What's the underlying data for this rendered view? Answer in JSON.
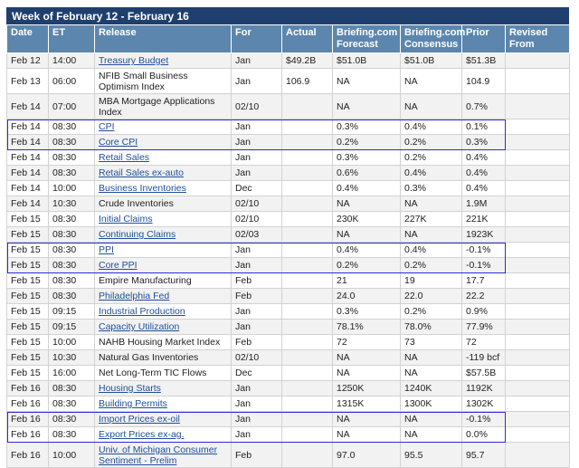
{
  "title": "Week of February 12 - February 16",
  "columns": [
    "Date",
    "ET",
    "Release",
    "For",
    "Actual",
    "Briefing.com Forecast",
    "Briefing.com Consensus",
    "Prior",
    "Revised From"
  ],
  "rows": [
    {
      "date": "Feb 12",
      "et": "14:00",
      "release": "Treasury Budget",
      "link": true,
      "for": "Jan",
      "actual": "$49.2B",
      "forecast": "$51.0B",
      "consensus": "$51.0B",
      "prior": "$51.3B",
      "revised": ""
    },
    {
      "date": "Feb 13",
      "et": "06:00",
      "release": "NFIB Small Business Optimism Index",
      "link": false,
      "for": "Jan",
      "actual": "106.9",
      "forecast": "NA",
      "consensus": "NA",
      "prior": "104.9",
      "revised": ""
    },
    {
      "date": "Feb 14",
      "et": "07:00",
      "release": "MBA Mortgage Applications Index",
      "link": false,
      "for": "02/10",
      "actual": "",
      "forecast": "NA",
      "consensus": "NA",
      "prior": "0.7%",
      "revised": ""
    },
    {
      "date": "Feb 14",
      "et": "08:30",
      "release": "CPI",
      "link": true,
      "for": "Jan",
      "actual": "",
      "forecast": "0.3%",
      "consensus": "0.4%",
      "prior": "0.1%",
      "revised": ""
    },
    {
      "date": "Feb 14",
      "et": "08:30",
      "release": "Core CPI",
      "link": true,
      "for": "Jan",
      "actual": "",
      "forecast": "0.2%",
      "consensus": "0.2%",
      "prior": "0.3%",
      "revised": ""
    },
    {
      "date": "Feb 14",
      "et": "08:30",
      "release": "Retail Sales",
      "link": true,
      "for": "Jan",
      "actual": "",
      "forecast": "0.3%",
      "consensus": "0.2%",
      "prior": "0.4%",
      "revised": ""
    },
    {
      "date": "Feb 14",
      "et": "08:30",
      "release": "Retail Sales ex-auto",
      "link": true,
      "for": "Jan",
      "actual": "",
      "forecast": "0.6%",
      "consensus": "0.4%",
      "prior": "0.4%",
      "revised": ""
    },
    {
      "date": "Feb 14",
      "et": "10:00",
      "release": "Business Inventories",
      "link": true,
      "for": "Dec",
      "actual": "",
      "forecast": "0.4%",
      "consensus": "0.3%",
      "prior": "0.4%",
      "revised": ""
    },
    {
      "date": "Feb 14",
      "et": "10:30",
      "release": "Crude Inventories",
      "link": false,
      "for": "02/10",
      "actual": "",
      "forecast": "NA",
      "consensus": "NA",
      "prior": "1.9M",
      "revised": ""
    },
    {
      "date": "Feb 15",
      "et": "08:30",
      "release": "Initial Claims",
      "link": true,
      "for": "02/10",
      "actual": "",
      "forecast": "230K",
      "consensus": "227K",
      "prior": "221K",
      "revised": ""
    },
    {
      "date": "Feb 15",
      "et": "08:30",
      "release": "Continuing Claims",
      "link": true,
      "for": "02/03",
      "actual": "",
      "forecast": "NA",
      "consensus": "NA",
      "prior": "1923K",
      "revised": ""
    },
    {
      "date": "Feb 15",
      "et": "08:30",
      "release": "PPI",
      "link": true,
      "for": "Jan",
      "actual": "",
      "forecast": "0.4%",
      "consensus": "0.4%",
      "prior": "-0.1%",
      "revised": ""
    },
    {
      "date": "Feb 15",
      "et": "08:30",
      "release": "Core PPI",
      "link": true,
      "for": "Jan",
      "actual": "",
      "forecast": "0.2%",
      "consensus": "0.2%",
      "prior": "-0.1%",
      "revised": ""
    },
    {
      "date": "Feb 15",
      "et": "08:30",
      "release": "Empire Manufacturing",
      "link": false,
      "for": "Feb",
      "actual": "",
      "forecast": "21",
      "consensus": "19",
      "prior": "17.7",
      "revised": ""
    },
    {
      "date": "Feb 15",
      "et": "08:30",
      "release": "Philadelphia Fed",
      "link": true,
      "for": "Feb",
      "actual": "",
      "forecast": "24.0",
      "consensus": "22.0",
      "prior": "22.2",
      "revised": ""
    },
    {
      "date": "Feb 15",
      "et": "09:15",
      "release": "Industrial Production",
      "link": true,
      "for": "Jan",
      "actual": "",
      "forecast": "0.3%",
      "consensus": "0.2%",
      "prior": "0.9%",
      "revised": ""
    },
    {
      "date": "Feb 15",
      "et": "09:15",
      "release": "Capacity Utilization",
      "link": true,
      "for": "Jan",
      "actual": "",
      "forecast": "78.1%",
      "consensus": "78.0%",
      "prior": "77.9%",
      "revised": ""
    },
    {
      "date": "Feb 15",
      "et": "10:00",
      "release": "NAHB Housing Market Index",
      "link": false,
      "for": "Feb",
      "actual": "",
      "forecast": "72",
      "consensus": "73",
      "prior": "72",
      "revised": ""
    },
    {
      "date": "Feb 15",
      "et": "10:30",
      "release": "Natural Gas Inventories",
      "link": false,
      "for": "02/10",
      "actual": "",
      "forecast": "NA",
      "consensus": "NA",
      "prior": "-119 bcf",
      "revised": ""
    },
    {
      "date": "Feb 15",
      "et": "16:00",
      "release": "Net Long-Term TIC Flows",
      "link": false,
      "for": "Dec",
      "actual": "",
      "forecast": "NA",
      "consensus": "NA",
      "prior": "$57.5B",
      "revised": ""
    },
    {
      "date": "Feb 16",
      "et": "08:30",
      "release": "Housing Starts",
      "link": true,
      "for": "Jan",
      "actual": "",
      "forecast": "1250K",
      "consensus": "1240K",
      "prior": "1192K",
      "revised": ""
    },
    {
      "date": "Feb 16",
      "et": "08:30",
      "release": "Building Permits",
      "link": true,
      "for": "Jan",
      "actual": "",
      "forecast": "1315K",
      "consensus": "1300K",
      "prior": "1302K",
      "revised": ""
    },
    {
      "date": "Feb 16",
      "et": "08:30",
      "release": "Import Prices ex-oil",
      "link": true,
      "for": "Jan",
      "actual": "",
      "forecast": "NA",
      "consensus": "NA",
      "prior": "-0.1%",
      "revised": ""
    },
    {
      "date": "Feb 16",
      "et": "08:30",
      "release": "Export Prices ex-ag.",
      "link": true,
      "for": "Jan",
      "actual": "",
      "forecast": "NA",
      "consensus": "NA",
      "prior": "0.0%",
      "revised": ""
    },
    {
      "date": "Feb 16",
      "et": "10:00",
      "release": "Univ. of Michigan Consumer Sentiment - Prelim",
      "link": true,
      "for": "Feb",
      "actual": "",
      "forecast": "97.0",
      "consensus": "95.5",
      "prior": "95.7",
      "revised": ""
    }
  ],
  "highlight_groups": [
    [
      3,
      4
    ],
    [
      11,
      12
    ],
    [
      22,
      23
    ]
  ],
  "colors": {
    "title_bg": "#1f3f6f",
    "header_bg": "#5c86ad",
    "link": "#1f4e9a",
    "highlight_box": "#2b2bd9",
    "row_stripe": "#f2f2f2"
  }
}
